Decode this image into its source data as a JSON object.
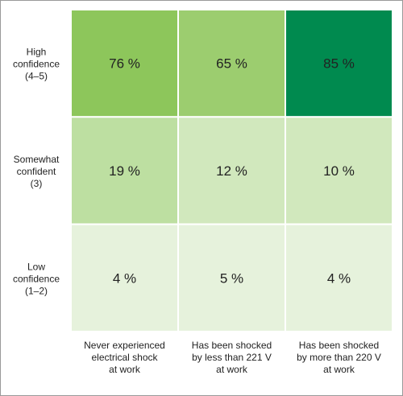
{
  "chart_data": {
    "type": "heatmap",
    "rows": [
      [
        "High",
        "confidence",
        "(4–5)"
      ],
      [
        "Somewhat",
        "confident",
        "(3)"
      ],
      [
        "Low",
        "confidence",
        "(1–2)"
      ]
    ],
    "columns": [
      [
        "Never experienced",
        "electrical shock",
        "at work"
      ],
      [
        "Has been shocked",
        "by less than 221 V",
        "at work"
      ],
      [
        "Has been shocked",
        "by more than 220 V",
        "at work"
      ]
    ],
    "values": [
      [
        76,
        65,
        85
      ],
      [
        19,
        12,
        10
      ],
      [
        4,
        5,
        4
      ]
    ],
    "value_labels": [
      [
        "76 %",
        "65 %",
        "85 %"
      ],
      [
        "19 %",
        "12 %",
        "10 %"
      ],
      [
        "4 %",
        "5 %",
        "4 %"
      ]
    ],
    "cell_colors": [
      [
        "#8dc65b",
        "#9ccd6f",
        "#008a4f"
      ],
      [
        "#bddfa1",
        "#d1e8bd",
        "#d1e8bd"
      ],
      [
        "#e6f2dc",
        "#e6f2dc",
        "#e6f2dc"
      ]
    ]
  }
}
